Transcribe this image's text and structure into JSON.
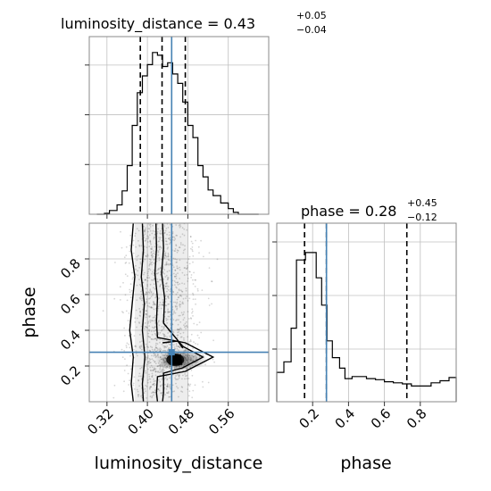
{
  "chart_data": {
    "type": "corner",
    "colors": {
      "truth": "#4682b4",
      "hist": "#000000",
      "grid": "#c0c0c0",
      "quantile": "#000000"
    },
    "parameters": [
      {
        "name": "luminosity_distance",
        "title_prefix": "luminosity_distance = 0.43",
        "title_plus": "+0.05",
        "title_minus": "−0.04",
        "range": [
          0.285,
          0.64
        ],
        "ticks": [
          0.32,
          0.4,
          0.48,
          0.56
        ],
        "tick_labels": [
          "0.32",
          "0.40",
          "0.48",
          "0.56"
        ],
        "truth": 0.448,
        "quantiles": [
          0.386,
          0.429,
          0.475
        ],
        "hist": {
          "edges": [
            0.3,
            0.315,
            0.325,
            0.34,
            0.35,
            0.36,
            0.37,
            0.38,
            0.39,
            0.4,
            0.41,
            0.42,
            0.43,
            0.44,
            0.45,
            0.46,
            0.47,
            0.48,
            0.49,
            0.5,
            0.51,
            0.52,
            0.53,
            0.545,
            0.56,
            0.57,
            0.58,
            0.62
          ],
          "counts": [
            0,
            1,
            4,
            10,
            25,
            52,
            95,
            130,
            148,
            160,
            173,
            170,
            158,
            162,
            150,
            140,
            120,
            95,
            82,
            52,
            40,
            26,
            20,
            12,
            6,
            2,
            0
          ],
          "ymax": 190
        }
      },
      {
        "name": "phase",
        "title_prefix": "phase = 0.28",
        "title_plus": "+0.45",
        "title_minus": "−0.12",
        "range": [
          0.0,
          1.0
        ],
        "ticks": [
          0.2,
          0.4,
          0.6,
          0.8
        ],
        "tick_labels": [
          "0.2",
          "0.4",
          "0.6",
          "0.8"
        ],
        "truth": 0.277,
        "quantiles": [
          0.155,
          0.277,
          0.725
        ],
        "hist": {
          "edges": [
            0.0,
            0.04,
            0.08,
            0.11,
            0.16,
            0.22,
            0.25,
            0.28,
            0.31,
            0.35,
            0.38,
            0.42,
            0.46,
            0.5,
            0.55,
            0.6,
            0.65,
            0.7,
            0.75,
            0.8,
            0.86,
            0.91,
            0.96,
            1.0
          ],
          "counts": [
            28,
            38,
            70,
            135,
            142,
            118,
            92,
            58,
            42,
            32,
            22,
            24,
            24,
            22,
            21,
            19,
            18,
            17,
            15,
            15,
            18,
            20,
            23
          ],
          "ymax": 170
        }
      }
    ],
    "scatter": {
      "xlabel": "luminosity_distance",
      "ylabel": "phase",
      "truth": [
        0.448,
        0.277
      ],
      "peak": [
        0.455,
        0.235
      ],
      "contour_levels": 3
    }
  }
}
